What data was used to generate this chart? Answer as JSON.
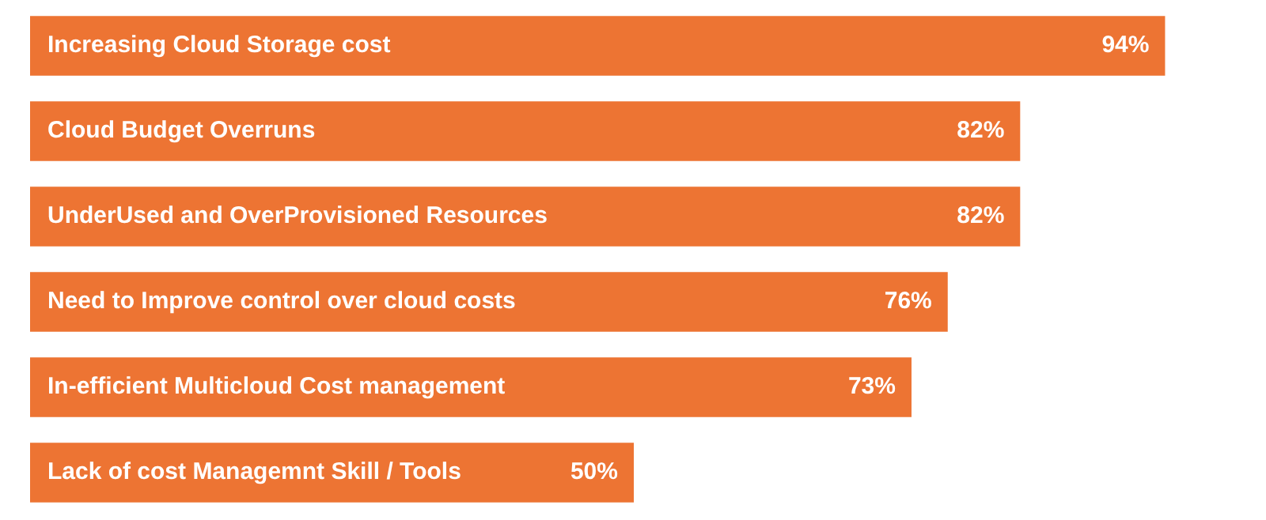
{
  "chart_data": {
    "type": "bar",
    "orientation": "horizontal",
    "categories": [
      "Increasing Cloud Storage cost",
      "Cloud Budget Overruns",
      "UnderUsed and OverProvisioned Resources",
      "Need to Improve control over cloud costs",
      "In-efficient Multicloud Cost management",
      "Lack of cost Managemnt Skill / Tools"
    ],
    "values": [
      94,
      82,
      82,
      76,
      73,
      50
    ],
    "value_labels": [
      "94%",
      "82%",
      "82%",
      "76%",
      "73%",
      "50%"
    ],
    "color": "#ed7433"
  }
}
